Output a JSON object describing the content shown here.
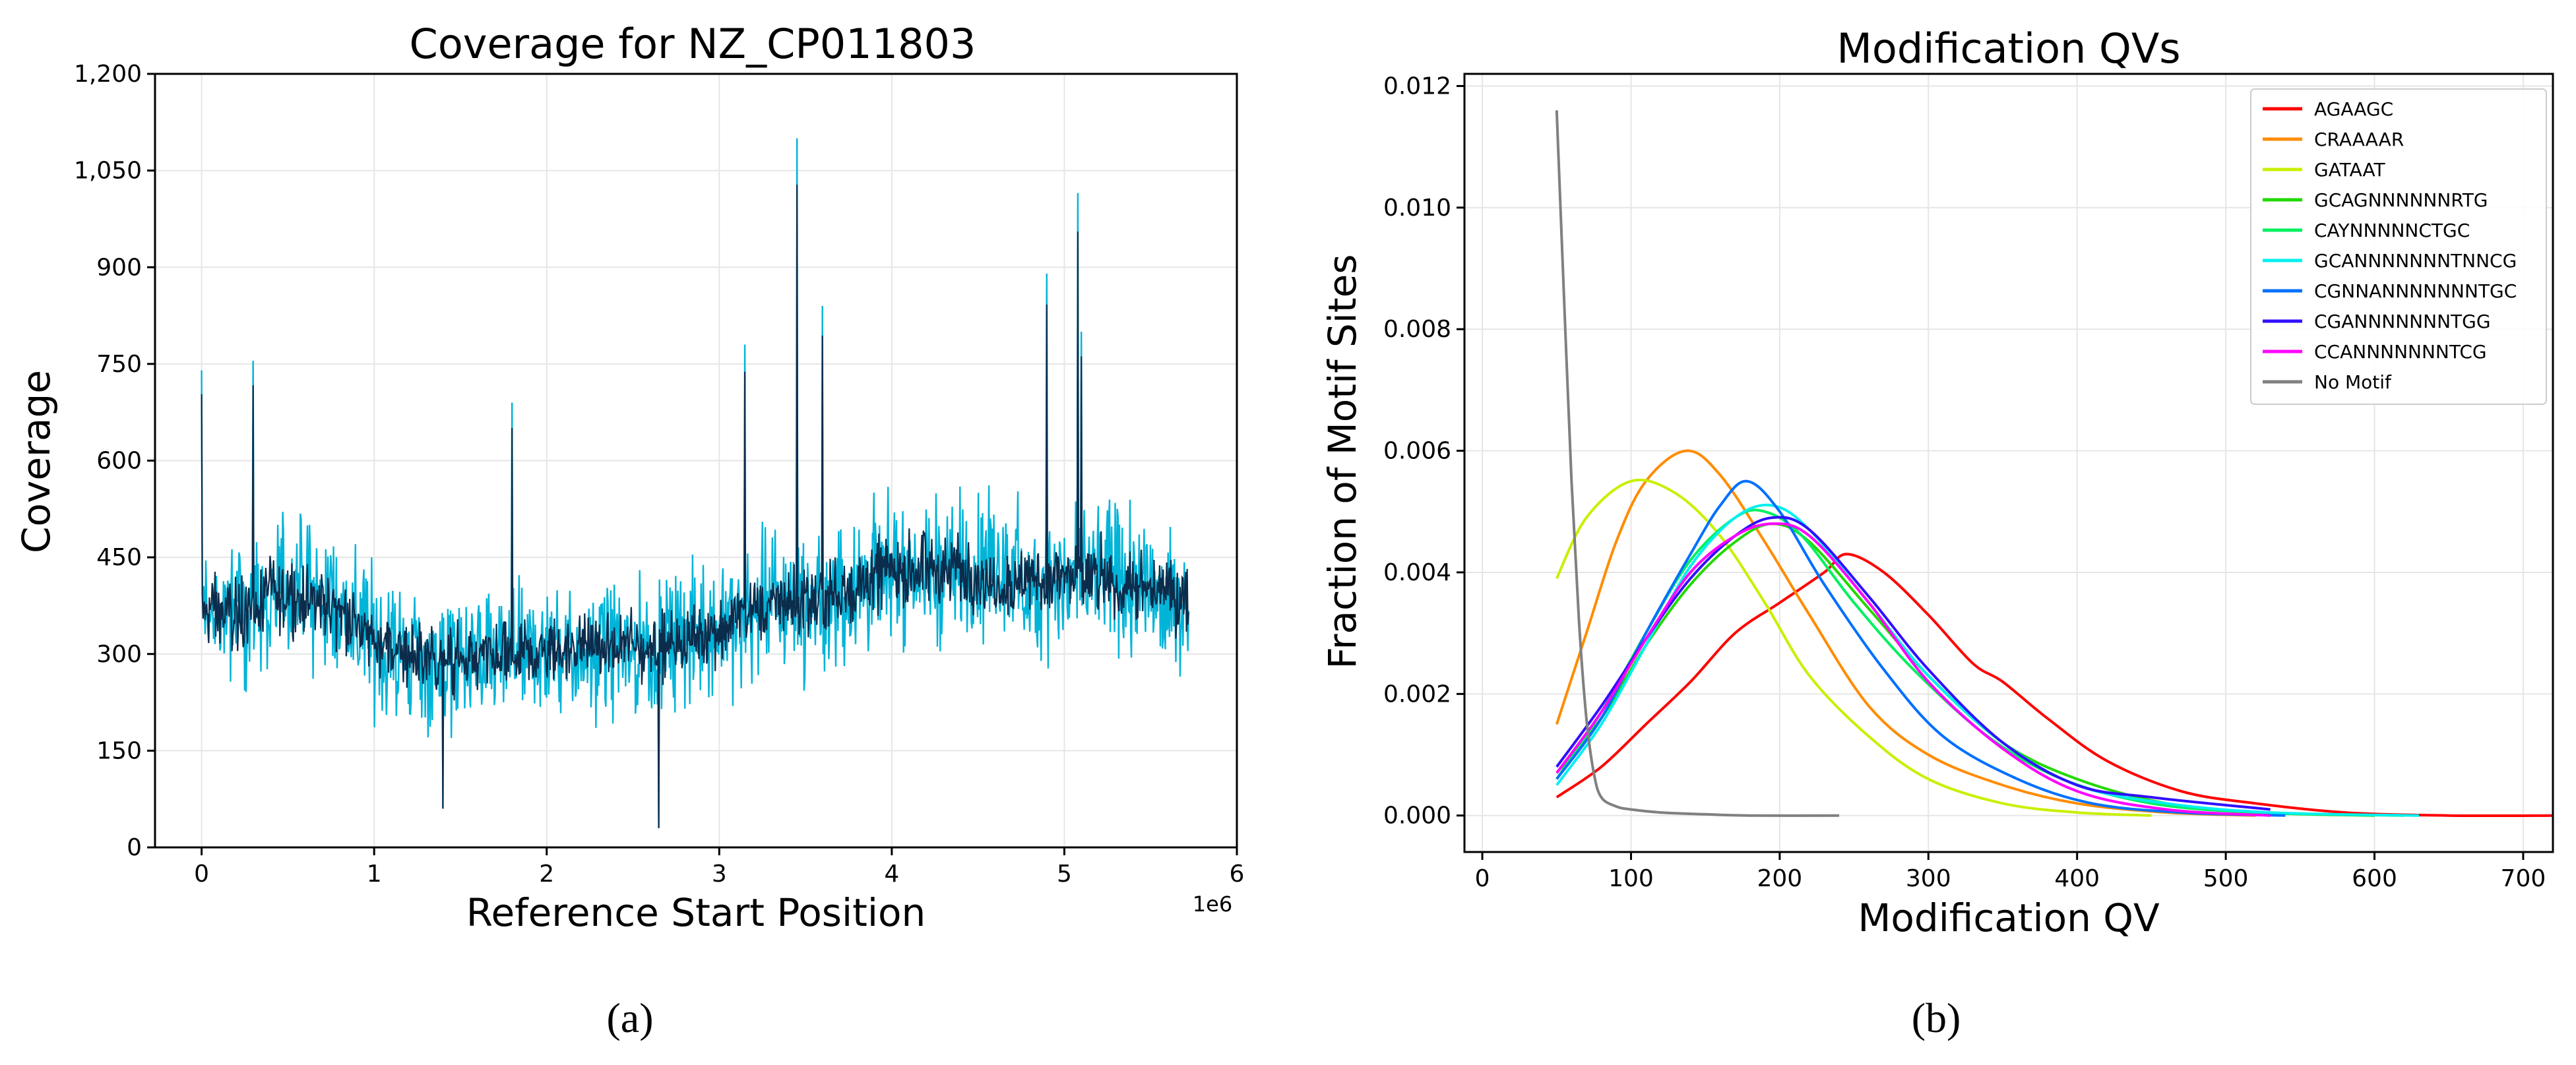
{
  "figure": {
    "caption_a": "(a)",
    "caption_b": "(b)"
  },
  "chart_data": [
    {
      "type": "line",
      "title": "Coverage for NZ_CP011803",
      "xlabel": "Reference Start Position",
      "ylabel": "Coverage",
      "x_offset_label": "1e6",
      "xlim": [
        -0.27,
        6.0
      ],
      "ylim": [
        0,
        1200
      ],
      "xticks": [
        0,
        1,
        2,
        3,
        4,
        5,
        6
      ],
      "xtick_labels": [
        "0",
        "1",
        "2",
        "3",
        "4",
        "5",
        "6"
      ],
      "yticks": [
        0,
        150,
        300,
        450,
        600,
        750,
        900,
        1050,
        1200
      ],
      "ytick_labels": [
        "0",
        "150",
        "300",
        "450",
        "600",
        "750",
        "900",
        "1,050",
        "1,200"
      ],
      "grid": true,
      "x_max": 5.72,
      "trend_points": [
        {
          "x": 0.0,
          "mean": 370,
          "spread": 150
        },
        {
          "x": 0.2,
          "mean": 360,
          "spread": 150
        },
        {
          "x": 0.5,
          "mean": 400,
          "spread": 150
        },
        {
          "x": 0.8,
          "mean": 370,
          "spread": 145
        },
        {
          "x": 1.0,
          "mean": 320,
          "spread": 140
        },
        {
          "x": 1.3,
          "mean": 290,
          "spread": 135
        },
        {
          "x": 1.6,
          "mean": 290,
          "spread": 135
        },
        {
          "x": 1.9,
          "mean": 300,
          "spread": 135
        },
        {
          "x": 2.2,
          "mean": 310,
          "spread": 135
        },
        {
          "x": 2.6,
          "mean": 310,
          "spread": 135
        },
        {
          "x": 3.0,
          "mean": 340,
          "spread": 140
        },
        {
          "x": 3.3,
          "mean": 380,
          "spread": 145
        },
        {
          "x": 3.6,
          "mean": 380,
          "spread": 150
        },
        {
          "x": 4.0,
          "mean": 430,
          "spread": 150
        },
        {
          "x": 4.4,
          "mean": 430,
          "spread": 150
        },
        {
          "x": 4.8,
          "mean": 410,
          "spread": 150
        },
        {
          "x": 5.2,
          "mean": 420,
          "spread": 150
        },
        {
          "x": 5.72,
          "mean": 380,
          "spread": 140
        }
      ],
      "spikes": [
        {
          "x": 0.0,
          "y": 740
        },
        {
          "x": 0.3,
          "y": 755
        },
        {
          "x": 1.8,
          "y": 690
        },
        {
          "x": 3.15,
          "y": 780
        },
        {
          "x": 3.45,
          "y": 1200
        },
        {
          "x": 3.45,
          "y": 1100
        },
        {
          "x": 3.6,
          "y": 840
        },
        {
          "x": 4.9,
          "y": 890
        },
        {
          "x": 5.08,
          "y": 1015
        },
        {
          "x": 5.1,
          "y": 800
        },
        {
          "x": 2.65,
          "y": 30
        },
        {
          "x": 1.4,
          "y": 60
        }
      ],
      "series": [
        {
          "name": "",
          "color": "#00b4d8"
        },
        {
          "name": "",
          "color": "#0c2c4c"
        }
      ]
    },
    {
      "type": "line",
      "title": "Modification QVs",
      "xlabel": "Modification QV",
      "ylabel": "Fraction of Motif Sites",
      "xlim": [
        -12,
        720
      ],
      "ylim": [
        -0.0006,
        0.0122
      ],
      "xticks": [
        0,
        100,
        200,
        300,
        400,
        500,
        600,
        700
      ],
      "xtick_labels": [
        "0",
        "100",
        "200",
        "300",
        "400",
        "500",
        "600",
        "700"
      ],
      "yticks": [
        0,
        0.002,
        0.004,
        0.006,
        0.008,
        0.01,
        0.012
      ],
      "ytick_labels": [
        "0.000",
        "0.002",
        "0.004",
        "0.006",
        "0.008",
        "0.010",
        "0.012"
      ],
      "grid": true,
      "legend_position": "top-right",
      "series": [
        {
          "name": "AGAAGC",
          "color": "#ff0000",
          "x": [
            50,
            80,
            110,
            140,
            170,
            200,
            230,
            245,
            270,
            300,
            330,
            350,
            380,
            420,
            470,
            520,
            580,
            650,
            720
          ],
          "y": [
            0.0003,
            0.0008,
            0.0015,
            0.0022,
            0.003,
            0.0035,
            0.004,
            0.0043,
            0.004,
            0.0033,
            0.0025,
            0.0022,
            0.0016,
            0.0009,
            0.0004,
            0.0002,
            5e-05,
            0.0,
            0.0
          ]
        },
        {
          "name": "CRAAAAR",
          "color": "#ff8c00",
          "x": [
            50,
            70,
            90,
            110,
            137,
            160,
            190,
            220,
            260,
            300,
            350,
            400,
            460,
            520
          ],
          "y": [
            0.0015,
            0.003,
            0.0045,
            0.0055,
            0.006,
            0.0056,
            0.0045,
            0.0033,
            0.0018,
            0.001,
            0.0005,
            0.0002,
            5e-05,
            0.0
          ]
        },
        {
          "name": "GATAAT",
          "color": "#c8f000",
          "x": [
            50,
            70,
            100,
            130,
            160,
            190,
            220,
            260,
            300,
            350,
            400,
            450
          ],
          "y": [
            0.0039,
            0.0049,
            0.0055,
            0.0053,
            0.0046,
            0.0035,
            0.0023,
            0.0013,
            0.0006,
            0.0002,
            5e-05,
            0.0
          ]
        },
        {
          "name": "GCAGNNNNNNRTG",
          "color": "#22d800",
          "x": [
            50,
            80,
            110,
            140,
            170,
            195,
            220,
            260,
            300,
            350,
            400,
            460,
            520,
            600
          ],
          "y": [
            0.0007,
            0.0016,
            0.0028,
            0.0038,
            0.0045,
            0.0048,
            0.0045,
            0.0034,
            0.0023,
            0.0012,
            0.0006,
            0.0002,
            5e-05,
            0.0
          ]
        },
        {
          "name": "CAYNNNNNCTGC",
          "color": "#00f060",
          "x": [
            50,
            80,
            110,
            140,
            170,
            190,
            215,
            250,
            290,
            340,
            390,
            450,
            520,
            620
          ],
          "y": [
            0.0006,
            0.0017,
            0.003,
            0.0042,
            0.0049,
            0.005,
            0.0046,
            0.0035,
            0.0024,
            0.0013,
            0.0006,
            0.0002,
            5e-05,
            0.0
          ]
        },
        {
          "name": "GCANNNNNNNTNNCG",
          "color": "#00f0f0",
          "x": [
            50,
            80,
            110,
            140,
            170,
            195,
            220,
            260,
            300,
            350,
            400,
            460,
            530,
            630
          ],
          "y": [
            0.0005,
            0.0015,
            0.0028,
            0.0041,
            0.0049,
            0.0051,
            0.0047,
            0.0035,
            0.0023,
            0.0012,
            0.0005,
            0.0002,
            5e-05,
            0.0
          ]
        },
        {
          "name": "CGNNANNNNNNNTGC",
          "color": "#0070ff",
          "x": [
            50,
            80,
            110,
            140,
            160,
            178,
            200,
            230,
            270,
            310,
            360,
            410,
            470,
            540
          ],
          "y": [
            0.0006,
            0.0016,
            0.003,
            0.0043,
            0.0051,
            0.0055,
            0.005,
            0.0038,
            0.0024,
            0.0013,
            0.0006,
            0.0002,
            5e-05,
            0.0
          ]
        },
        {
          "name": "CGANNNNNNNTGG",
          "color": "#3010ff",
          "x": [
            50,
            80,
            110,
            140,
            170,
            195,
            220,
            260,
            300,
            350,
            400,
            450,
            530
          ],
          "y": [
            0.0008,
            0.0018,
            0.0029,
            0.0039,
            0.0046,
            0.0049,
            0.0047,
            0.0036,
            0.0024,
            0.0012,
            0.0005,
            0.0003,
            0.0001
          ]
        },
        {
          "name": "CCANNNNNNNTCG",
          "color": "#ff00ff",
          "x": [
            50,
            80,
            110,
            140,
            170,
            195,
            220,
            260,
            300,
            350,
            400,
            460,
            530
          ],
          "y": [
            0.0007,
            0.0017,
            0.0029,
            0.004,
            0.0046,
            0.0048,
            0.0046,
            0.0035,
            0.0022,
            0.0011,
            0.0004,
            0.0001,
            0.0
          ]
        },
        {
          "name": "No Motif",
          "color": "#808080",
          "x": [
            50,
            55,
            60,
            65,
            70,
            75,
            80,
            90,
            100,
            120,
            150,
            180,
            240
          ],
          "y": [
            0.0116,
            0.0085,
            0.0055,
            0.0032,
            0.0016,
            0.0007,
            0.0003,
            0.00015,
            0.0001,
            5e-05,
            2e-05,
            0.0,
            0.0
          ]
        }
      ]
    }
  ]
}
